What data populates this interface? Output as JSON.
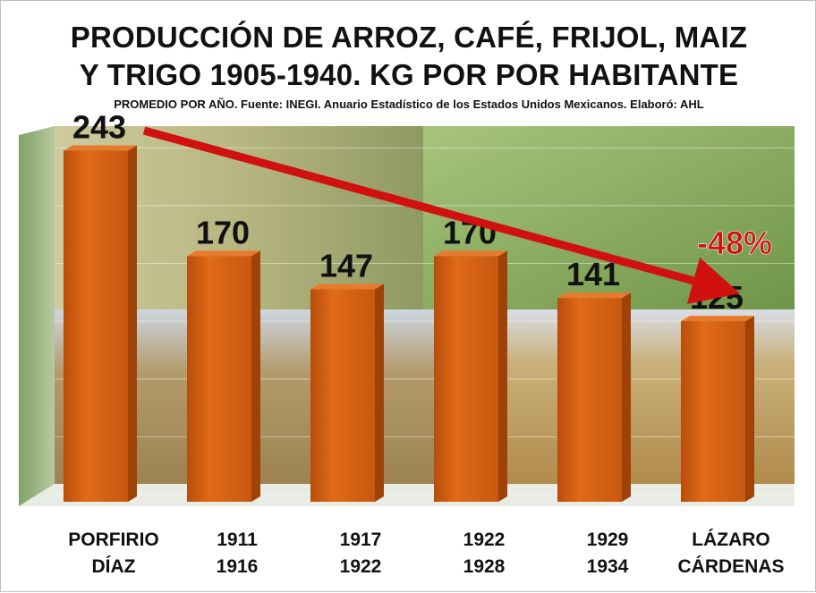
{
  "title_line1": "PRODUCCIÓN DE ARROZ, CAFÉ, FRIJOL, MAIZ",
  "title_line2": "Y TRIGO 1905-1940. KG POR POR HABITANTE",
  "subtitle": "PROMEDIO POR AÑO.  Fuente: INEGI. Anuario Estadístico de los Estados Unidos Mexicanos. Elaboró: AHL",
  "colors": {
    "bar": "#d45f12",
    "bar_dark": "#9e4208",
    "arrow": "#d11010",
    "annotation": "#d11010"
  },
  "chart_data": {
    "type": "bar",
    "title": "PRODUCCIÓN DE ARROZ, CAFÉ, FRIJOL, MAIZ Y TRIGO 1905-1940. KG POR POR HABITANTE",
    "subtitle": "PROMEDIO POR AÑO.  Fuente: INEGI. Anuario Estadístico de los Estados Unidos Mexicanos. Elaboró: AHL",
    "categories": [
      {
        "line1": "PORFIRIO",
        "line2": "DÍAZ"
      },
      {
        "line1": "1911",
        "line2": "1916"
      },
      {
        "line1": "1917",
        "line2": "1922"
      },
      {
        "line1": "1922",
        "line2": "1928"
      },
      {
        "line1": "1929",
        "line2": "1934"
      },
      {
        "line1": "LÁZARO",
        "line2": "CÁRDENAS"
      }
    ],
    "values": [
      243,
      170,
      147,
      170,
      141,
      125
    ],
    "value_labels": [
      "243",
      "170",
      "147",
      "170",
      "141",
      "125"
    ],
    "ylim": [
      0,
      260
    ],
    "grid": true,
    "legend": "none",
    "annotation": {
      "text": "-48%",
      "type": "trend-arrow",
      "from_category": "PORFIRIO DÍAZ",
      "to_category": "LÁZARO CÁRDENAS"
    }
  }
}
